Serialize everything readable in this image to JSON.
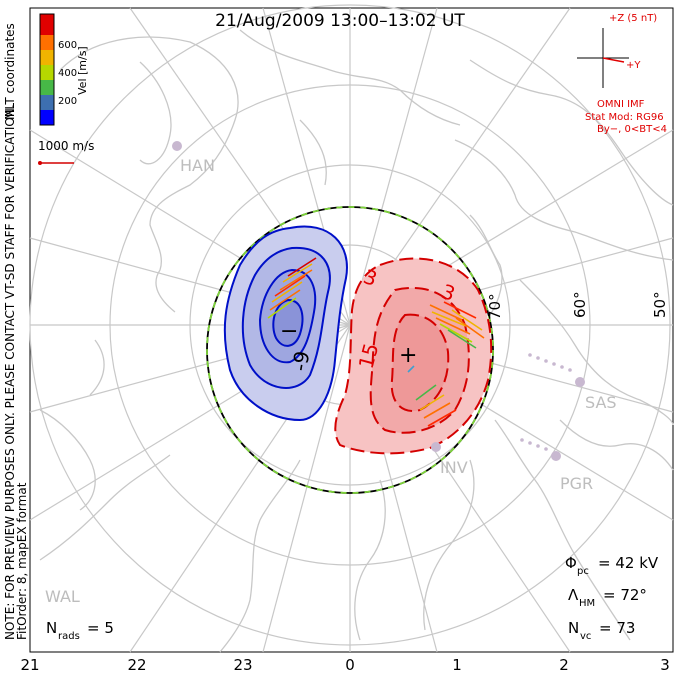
{
  "title": "21/Aug/2009 13:00–13:02 UT",
  "legend": {
    "axis_label": "Vel [m/s]",
    "ticks": [
      "600",
      "400",
      "200"
    ],
    "colors": [
      "#0000ff",
      "#3d9fd0",
      "#47b847",
      "#b6d800",
      "#f0b400",
      "#ff7000",
      "#ff2a00",
      "#d40000"
    ],
    "ref_vector_label": "1000 m/s"
  },
  "coordinates_label": "MLT coordinates",
  "side_note": "NOTE: FOR PREVIEW PURPOSES ONLY. PLEASE CONTACT VT-SD STAFF FOR VERIFICATION.",
  "fit_note": "FitOrder: 8, mapEX format",
  "imf": {
    "z_label": "+Z (5 nT)",
    "y_label": "+Y",
    "source": "OMNI IMF",
    "model": "Stat Mod: RG96",
    "condition": "By−, 0<BT<4"
  },
  "latitude_labels": [
    "70°",
    "60°",
    "50°"
  ],
  "stations": [
    {
      "name": "HAN"
    },
    {
      "name": "SAS"
    },
    {
      "name": "INV"
    },
    {
      "name": "PGR"
    },
    {
      "name": "WAL"
    }
  ],
  "contours": {
    "negative_label": "-9",
    "positive_labels": [
      "3",
      "3",
      "15"
    ],
    "min_marker": "−",
    "max_marker": "+"
  },
  "stats": {
    "phi_symbol": "Φ",
    "phi_sub": "pc",
    "phi_value": "= 42 kV",
    "lambda_symbol": "Λ",
    "lambda_sub": "HM",
    "lambda_value": "= 72°",
    "nvc_symbol": "N",
    "nvc_sub": "vc",
    "nvc_value": "= 73",
    "nrads_symbol": "N",
    "nrads_sub": "rads",
    "nrads_value": "= 5"
  },
  "mlt_axis": [
    "21",
    "22",
    "23",
    "0",
    "1",
    "2",
    "3"
  ],
  "colors": {
    "negative_fill": "#b8bde8",
    "negative_line": "#0010c8",
    "positive_fill": "#f5b4b4",
    "positive_line": "#d40000",
    "grid": "#c8c8c8",
    "coast": "#c8c8c8"
  }
}
